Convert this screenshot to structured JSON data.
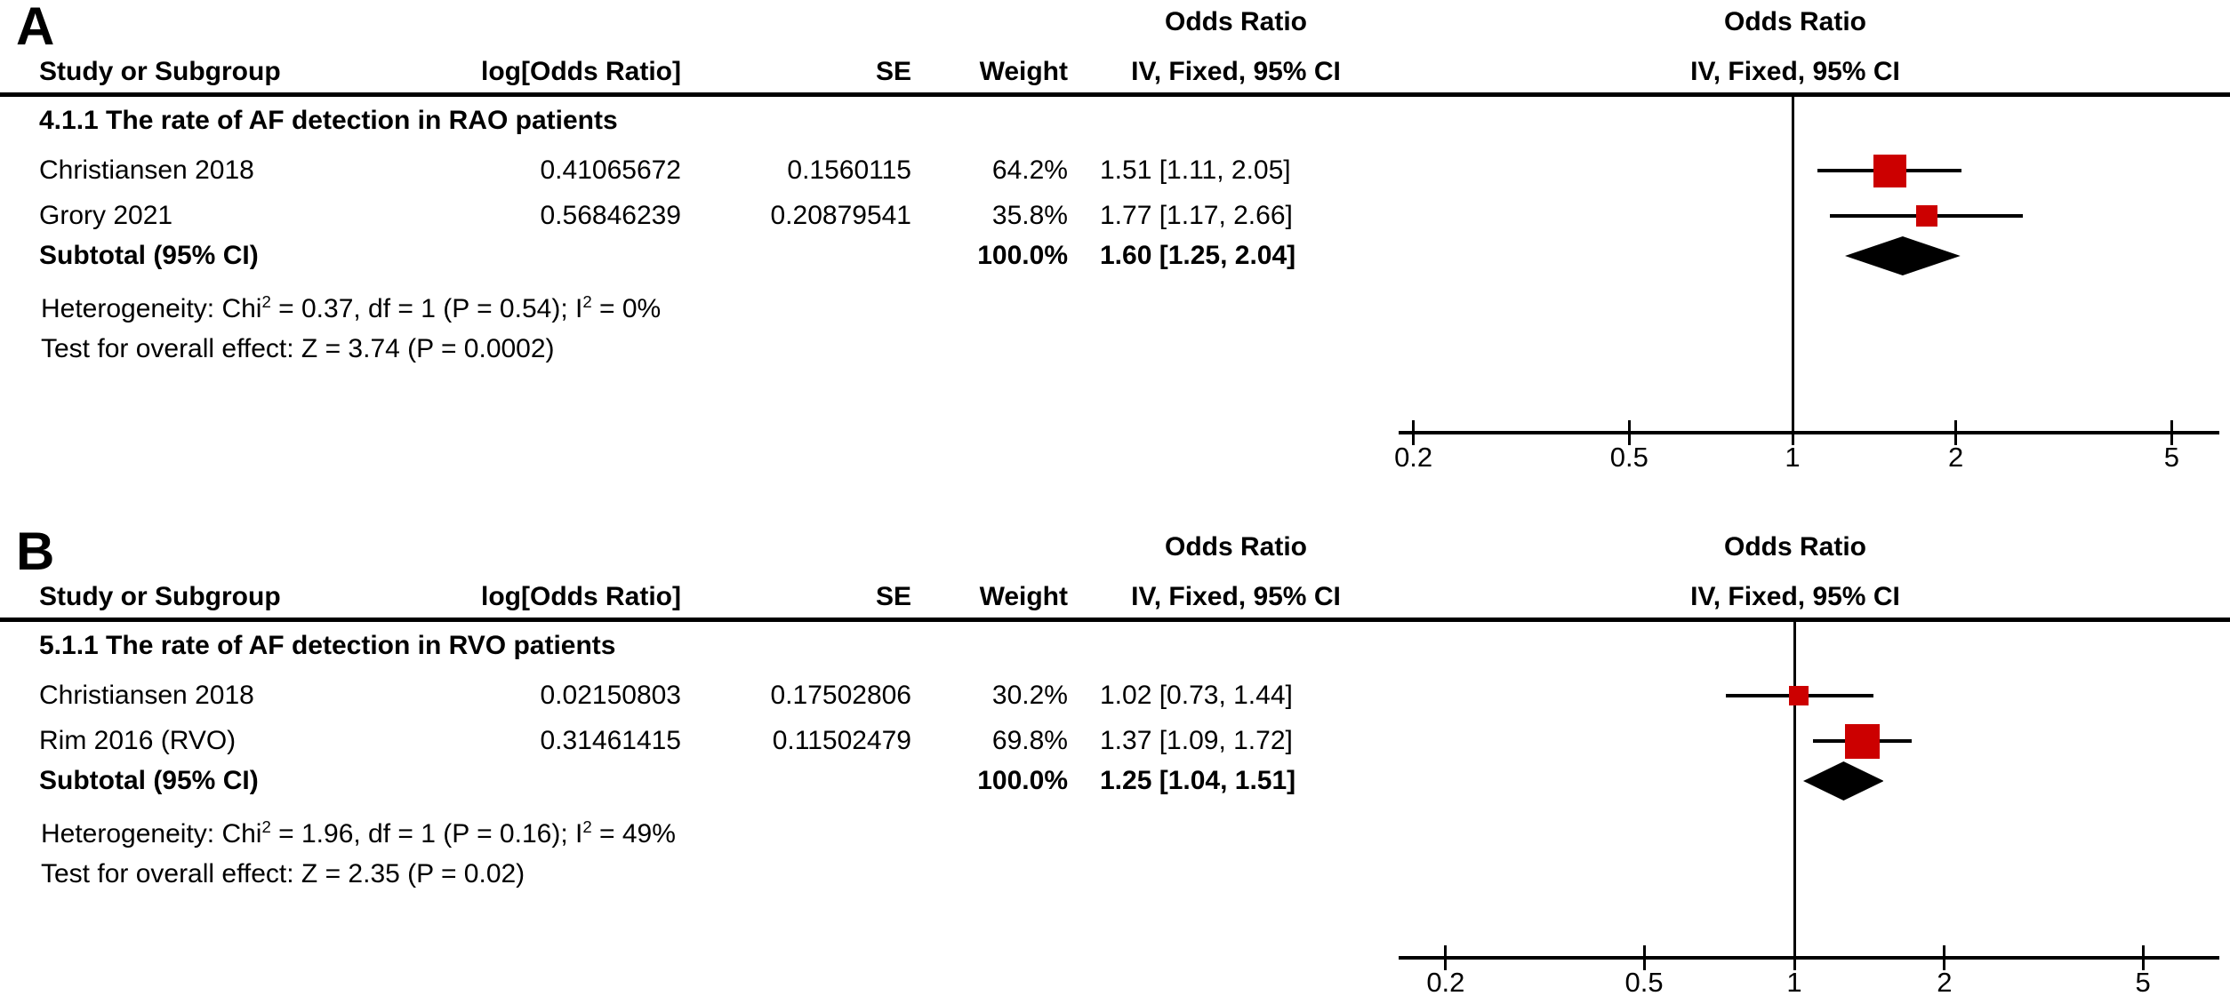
{
  "chart_data": [
    {
      "type": "forest",
      "panel_label": "A",
      "effect_measure": "Odds Ratio",
      "model": "IV, Fixed",
      "x_scale": "log",
      "x_ticks": [
        0.2,
        0.5,
        1,
        2,
        5
      ],
      "headers": {
        "study": "Study or Subgroup",
        "log_or": "log[Odds Ratio]",
        "se": "SE",
        "weight": "Weight",
        "effect_title": "Odds Ratio",
        "effect_subtitle": "IV, Fixed, 95% CI",
        "plot_title": "Odds Ratio",
        "plot_subtitle": "IV, Fixed, 95% CI"
      },
      "subgroup": "4.1.1 The rate of AF detection in RAO patients",
      "studies": [
        {
          "name": "Christiansen 2018",
          "log_or": "0.41065672",
          "se": "0.1560115",
          "weight": "64.2%",
          "weight_pct": 64.2,
          "or": 1.51,
          "ci_low": 1.11,
          "ci_high": 2.05,
          "or_ci_text": "1.51 [1.11, 2.05]"
        },
        {
          "name": "Grory 2021",
          "log_or": "0.56846239",
          "se": "0.20879541",
          "weight": "35.8%",
          "weight_pct": 35.8,
          "or": 1.77,
          "ci_low": 1.17,
          "ci_high": 2.66,
          "or_ci_text": "1.77 [1.17, 2.66]"
        }
      ],
      "subtotal": {
        "label": "Subtotal (95% CI)",
        "weight": "100.0%",
        "weight_pct": 100.0,
        "or": 1.6,
        "ci_low": 1.25,
        "ci_high": 2.04,
        "or_ci_text": "1.60 [1.25, 2.04]"
      },
      "heterogeneity": {
        "pre": "Heterogeneity: Chi",
        "sup1": "2",
        "mid": " = 0.37, df = 1 (P = 0.54); I",
        "sup2": "2",
        "post": " = 0%"
      },
      "overall_effect": "Test for overall effect: Z = 3.74 (P = 0.0002)",
      "colors": {
        "square": "#cc0000",
        "diamond": "#000000",
        "line": "#000000"
      }
    },
    {
      "type": "forest",
      "panel_label": "B",
      "effect_measure": "Odds Ratio",
      "model": "IV, Fixed",
      "x_scale": "log",
      "x_ticks": [
        0.2,
        0.5,
        1,
        2,
        5
      ],
      "headers": {
        "study": "Study or Subgroup",
        "log_or": "log[Odds Ratio]",
        "se": "SE",
        "weight": "Weight",
        "effect_title": "Odds Ratio",
        "effect_subtitle": "IV, Fixed, 95% CI",
        "plot_title": "Odds Ratio",
        "plot_subtitle": "IV, Fixed, 95% CI"
      },
      "subgroup": "5.1.1 The rate of AF detection in RVO patients",
      "studies": [
        {
          "name": "Christiansen 2018",
          "log_or": "0.02150803",
          "se": "0.17502806",
          "weight": "30.2%",
          "weight_pct": 30.2,
          "or": 1.02,
          "ci_low": 0.73,
          "ci_high": 1.44,
          "or_ci_text": "1.02 [0.73, 1.44]"
        },
        {
          "name": "Rim 2016 (RVO)",
          "log_or": "0.31461415",
          "se": "0.11502479",
          "weight": "69.8%",
          "weight_pct": 69.8,
          "or": 1.37,
          "ci_low": 1.09,
          "ci_high": 1.72,
          "or_ci_text": "1.37 [1.09, 1.72]"
        }
      ],
      "subtotal": {
        "label": "Subtotal (95% CI)",
        "weight": "100.0%",
        "weight_pct": 100.0,
        "or": 1.25,
        "ci_low": 1.04,
        "ci_high": 1.51,
        "or_ci_text": "1.25 [1.04, 1.51]"
      },
      "heterogeneity": {
        "pre": "Heterogeneity: Chi",
        "sup1": "2",
        "mid": " = 1.96, df = 1 (P = 0.16); I",
        "sup2": "2",
        "post": " = 49%"
      },
      "overall_effect": "Test for overall effect: Z = 2.35 (P = 0.02)",
      "colors": {
        "square": "#cc0000",
        "diamond": "#000000",
        "line": "#000000"
      }
    }
  ]
}
